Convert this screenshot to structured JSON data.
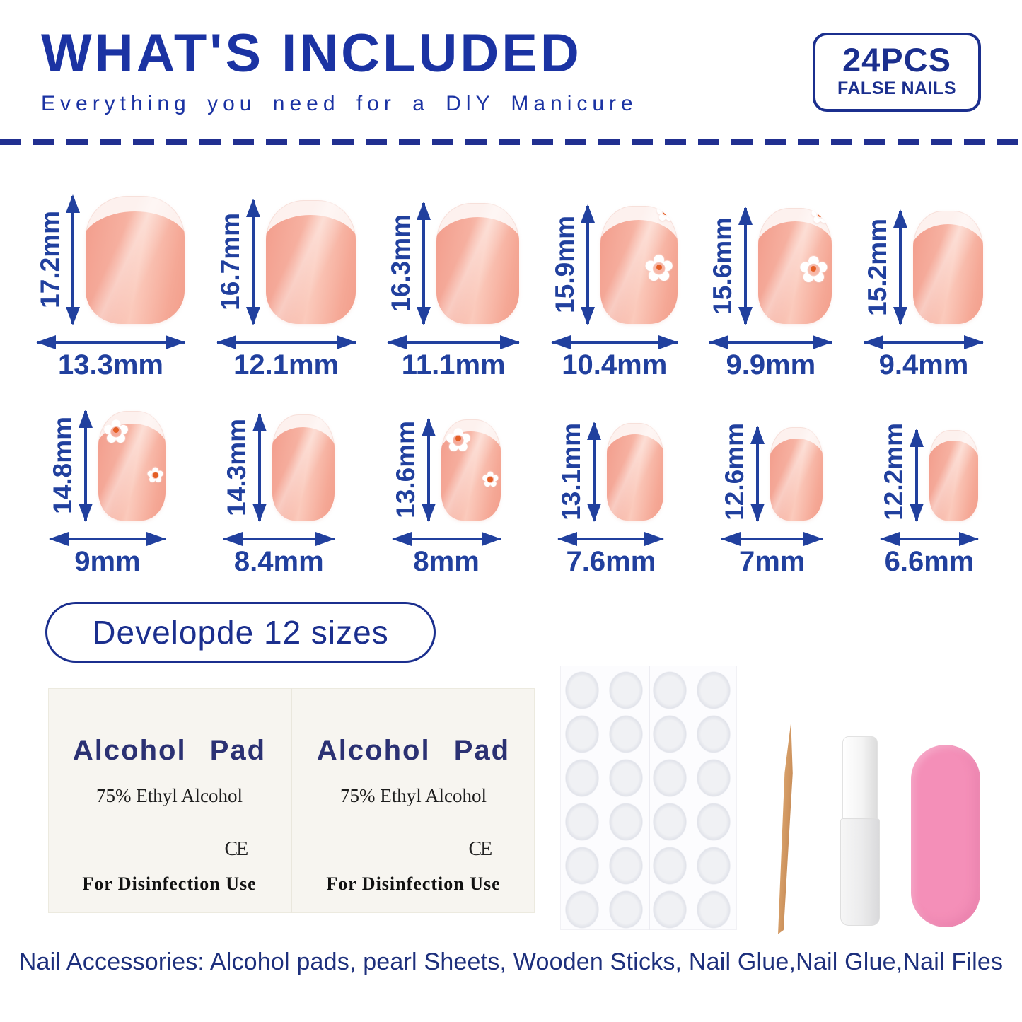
{
  "header": {
    "title": "WHAT'S INCLUDED",
    "subtitle": "Everything you need for a DlY Manicure",
    "badge": {
      "line1": "24PCS",
      "line2": "FALSE NAILS"
    }
  },
  "sizes_pill": "Developde 12 sizes",
  "daisy_glyph": "✿",
  "nails": [
    {
      "height": "17.2mm",
      "width": "13.3mm",
      "design": "french"
    },
    {
      "height": "16.7mm",
      "width": "12.1mm",
      "design": "french"
    },
    {
      "height": "16.3mm",
      "width": "11.1mm",
      "design": "french"
    },
    {
      "height": "15.9mm",
      "width": "10.4mm",
      "design": "daisy-right"
    },
    {
      "height": "15.6mm",
      "width": "9.9mm",
      "design": "daisy-right"
    },
    {
      "height": "15.2mm",
      "width": "9.4mm",
      "design": "french"
    },
    {
      "height": "14.8mm",
      "width": "9mm",
      "design": "daisy-left"
    },
    {
      "height": "14.3mm",
      "width": "8.4mm",
      "design": "french"
    },
    {
      "height": "13.6mm",
      "width": "8mm",
      "design": "daisy-left"
    },
    {
      "height": "13.1mm",
      "width": "7.6mm",
      "design": "french"
    },
    {
      "height": "12.6mm",
      "width": "7mm",
      "design": "french"
    },
    {
      "height": "12.2mm",
      "width": "6.6mm",
      "design": "french"
    }
  ],
  "alcohol_pad": {
    "title": "Alcohol Pad",
    "subtitle": "75% Ethyl Alcohol",
    "ce_mark": "CE",
    "footer": "For Disinfection Use"
  },
  "caption": "Nail Accessories: Alcohol pads, pearl Sheets, Wooden Sticks, Nail Glue,Nail Glue,Nail Files",
  "colors": {
    "accent_navy": "#1b33a3",
    "dimension_navy": "#21409e",
    "nail_pink": "#f5a896",
    "file_pink": "#f48fb8",
    "wood_tan": "#d09660"
  }
}
